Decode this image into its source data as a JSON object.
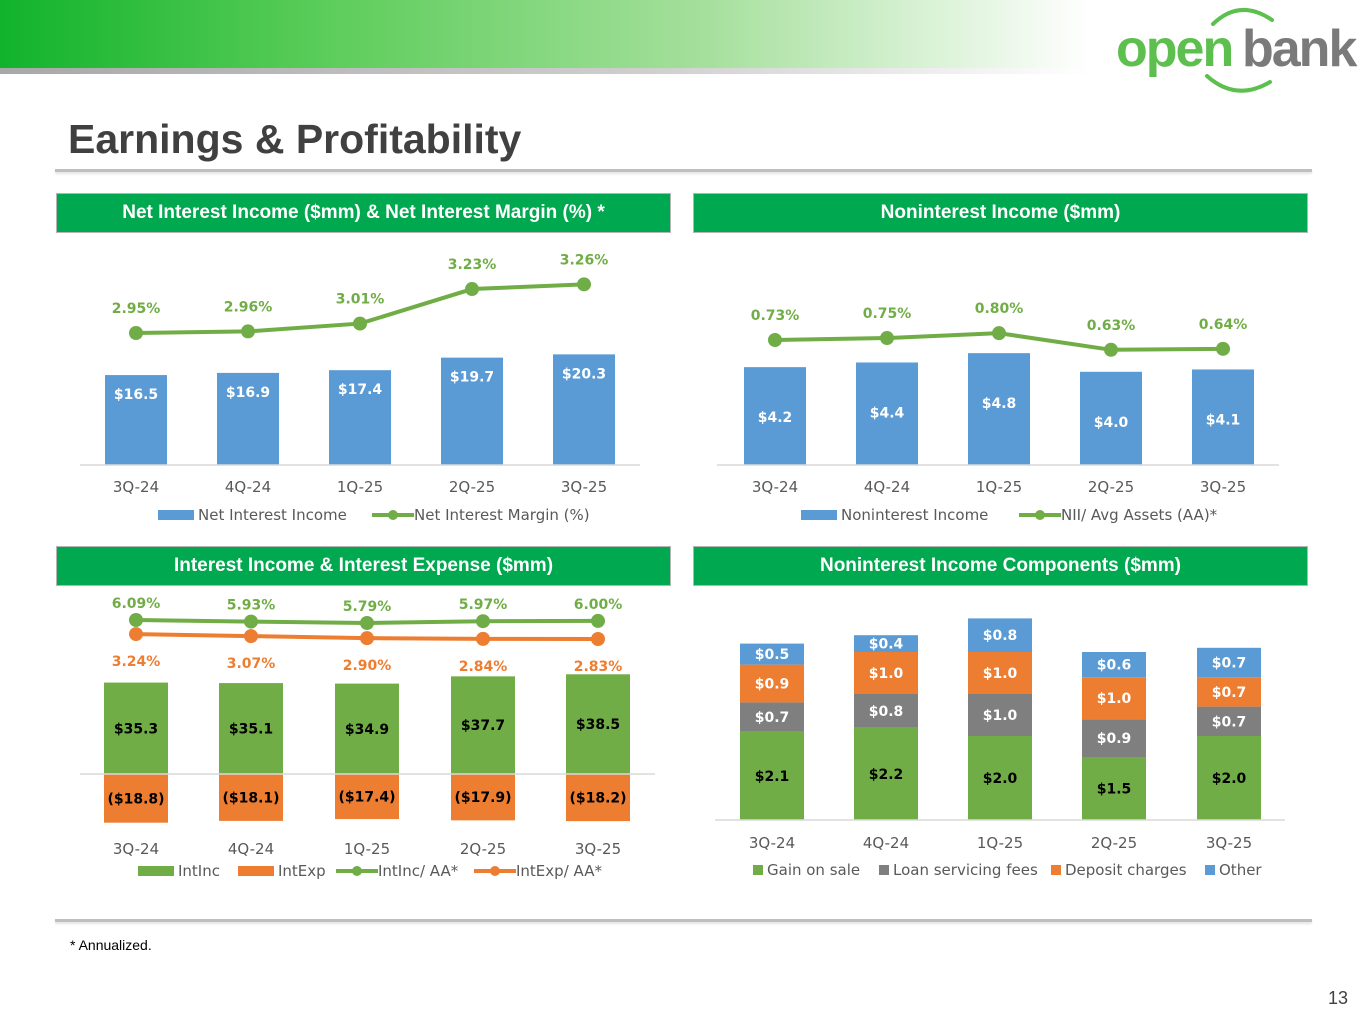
{
  "page": {
    "title": "Earnings & Profitability",
    "footnote": "* Annualized.",
    "page_number": "13",
    "logo_text_left": "open",
    "logo_text_right": "bank"
  },
  "colors": {
    "green_header": "#00a94f",
    "blue": "#5b9bd5",
    "green": "#70ad47",
    "orange": "#ed7d31",
    "gray": "#7f7f7f",
    "axis": "#d9d9d9",
    "text": "#595959"
  },
  "panels": [
    {
      "title": "Net Interest Income ($mm) & Net Interest Margin (%) *"
    },
    {
      "title": "Noninterest Income ($mm)"
    },
    {
      "title": "Interest Income & Interest Expense ($mm)"
    },
    {
      "title": "Noninterest Income Components ($mm)"
    }
  ],
  "chart_data": [
    {
      "type": "bar",
      "title": "Net Interest Income ($mm) & Net Interest Margin (%) *",
      "categories": [
        "3Q-24",
        "4Q-24",
        "1Q-25",
        "2Q-25",
        "3Q-25"
      ],
      "series": [
        {
          "name": "Net Interest Income",
          "kind": "bar",
          "values": [
            16.5,
            16.9,
            17.4,
            19.7,
            20.3
          ],
          "labels": [
            "$16.5",
            "$16.9",
            "$17.4",
            "$19.7",
            "$20.3"
          ]
        },
        {
          "name": "Net Interest Margin (%)",
          "kind": "line",
          "values": [
            2.95,
            2.96,
            3.01,
            3.23,
            3.26
          ],
          "labels": [
            "2.95%",
            "2.96%",
            "3.01%",
            "3.23%",
            "3.26%"
          ]
        }
      ],
      "legend": "bottom"
    },
    {
      "type": "bar",
      "title": "Noninterest Income ($mm)",
      "categories": [
        "3Q-24",
        "4Q-24",
        "1Q-25",
        "2Q-25",
        "3Q-25"
      ],
      "series": [
        {
          "name": "Noninterest Income",
          "kind": "bar",
          "values": [
            4.2,
            4.4,
            4.8,
            4.0,
            4.1
          ],
          "labels": [
            "$4.2",
            "$4.4",
            "$4.8",
            "$4.0",
            "$4.1"
          ]
        },
        {
          "name": "NII/ Avg Assets (AA)*",
          "kind": "line",
          "values": [
            0.73,
            0.75,
            0.8,
            0.63,
            0.64
          ],
          "labels": [
            "0.73%",
            "0.75%",
            "0.80%",
            "0.63%",
            "0.64%"
          ]
        }
      ],
      "legend": "bottom"
    },
    {
      "type": "bar",
      "title": "Interest Income & Interest Expense ($mm)",
      "categories": [
        "3Q-24",
        "4Q-24",
        "1Q-25",
        "2Q-25",
        "3Q-25"
      ],
      "series": [
        {
          "name": "IntInc",
          "kind": "bar",
          "values": [
            35.3,
            35.1,
            34.9,
            37.7,
            38.5
          ],
          "labels": [
            "$35.3",
            "$35.1",
            "$34.9",
            "$37.7",
            "$38.5"
          ]
        },
        {
          "name": "IntExp",
          "kind": "bar",
          "values": [
            -18.8,
            -18.1,
            -17.4,
            -17.9,
            -18.2
          ],
          "labels": [
            "($18.8)",
            "($18.1)",
            "($17.4)",
            "($17.9)",
            "($18.2)"
          ]
        },
        {
          "name": "IntInc/ AA*",
          "kind": "line",
          "values": [
            6.09,
            5.93,
            5.79,
            5.97,
            6.0
          ],
          "labels": [
            "6.09%",
            "5.93%",
            "5.79%",
            "5.97%",
            "6.00%"
          ]
        },
        {
          "name": "IntExp/ AA*",
          "kind": "line",
          "values": [
            3.24,
            3.07,
            2.9,
            2.84,
            2.83
          ],
          "labels": [
            "3.24%",
            "3.07%",
            "2.90%",
            "2.84%",
            "2.83%"
          ]
        }
      ],
      "legend": "bottom"
    },
    {
      "type": "bar",
      "stacked": true,
      "title": "Noninterest Income Components ($mm)",
      "categories": [
        "3Q-24",
        "4Q-24",
        "1Q-25",
        "2Q-25",
        "3Q-25"
      ],
      "series": [
        {
          "name": "Gain on sale",
          "values": [
            2.1,
            2.2,
            2.0,
            1.5,
            2.0
          ],
          "labels": [
            "$2.1",
            "$2.2",
            "$2.0",
            "$1.5",
            "$2.0"
          ]
        },
        {
          "name": "Loan servicing fees",
          "values": [
            0.7,
            0.8,
            1.0,
            0.9,
            0.7
          ],
          "labels": [
            "$0.7",
            "$0.8",
            "$1.0",
            "$0.9",
            "$0.7"
          ]
        },
        {
          "name": "Deposit charges",
          "values": [
            0.9,
            1.0,
            1.0,
            1.0,
            0.7
          ],
          "labels": [
            "$0.9",
            "$1.0",
            "$1.0",
            "$1.0",
            "$0.7"
          ]
        },
        {
          "name": "Other",
          "values": [
            0.5,
            0.4,
            0.8,
            0.6,
            0.7
          ],
          "labels": [
            "$0.5",
            "$0.4",
            "$0.8",
            "$0.6",
            "$0.7"
          ]
        }
      ],
      "legend": "bottom"
    }
  ]
}
